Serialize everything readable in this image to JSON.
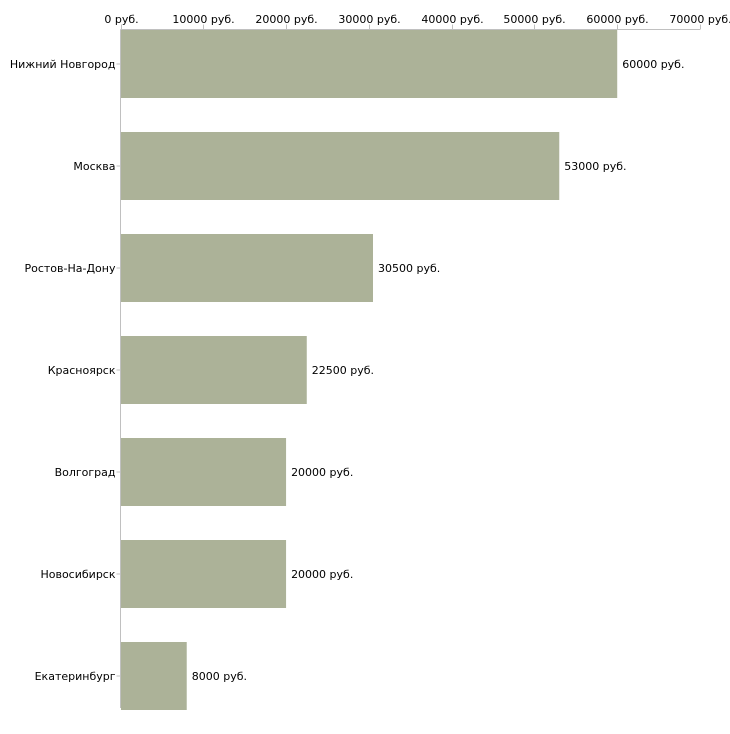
{
  "chart_data": {
    "type": "bar",
    "orientation": "horizontal",
    "categories": [
      "Нижний Новгород",
      "Москва",
      "Ростов-На-Дону",
      "Красноярск",
      "Волгоград",
      "Новосибирск",
      "Екатеринбург"
    ],
    "values": [
      60000,
      53000,
      30500,
      22500,
      20000,
      20000,
      8000
    ],
    "value_labels": [
      "60000 руб.",
      "53000 руб.",
      "30500 руб.",
      "22500 руб.",
      "20000 руб.",
      "20000 руб.",
      "8000 руб."
    ],
    "x_ticks": [
      0,
      10000,
      20000,
      30000,
      40000,
      50000,
      60000,
      70000
    ],
    "x_tick_labels": [
      "0 руб.",
      "10000 руб.",
      "20000 руб.",
      "30000 руб.",
      "40000 руб.",
      "50000 руб.",
      "60000 руб.",
      "70000 руб."
    ],
    "xlim": [
      0,
      70000
    ],
    "axis_position": "top",
    "grid": false,
    "title": "",
    "xlabel": "",
    "ylabel": "",
    "bar_color": "#acb298",
    "axis_color": "#c0c0c0"
  }
}
